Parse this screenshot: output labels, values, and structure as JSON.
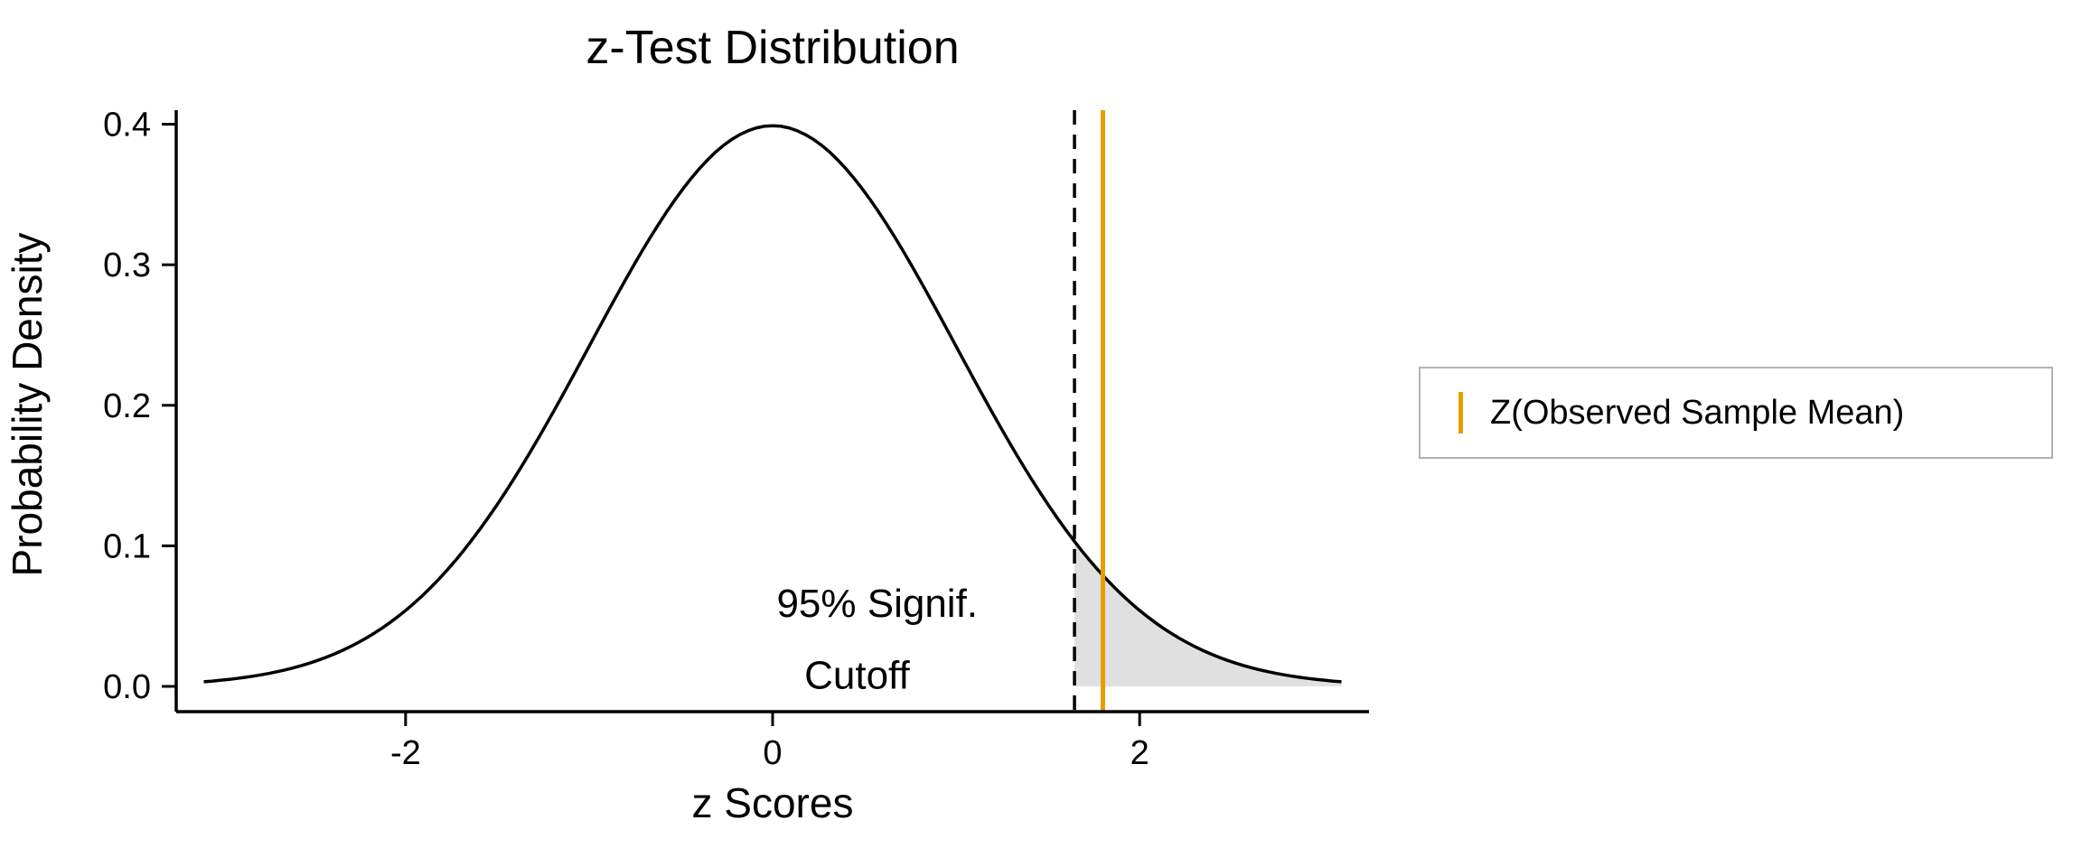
{
  "page": {
    "background": "#ffffff"
  },
  "chart_data": {
    "type": "line",
    "title": "z-Test Distribution",
    "xlabel": "z Scores",
    "ylabel": "Probability Density",
    "x_ticks": [
      -2,
      0,
      2
    ],
    "y_ticks": [
      0,
      0.1,
      0.2,
      0.3,
      0.4
    ],
    "xlim": [
      -3.25,
      3.25
    ],
    "ylim": [
      -0.018,
      0.41
    ],
    "grid": false,
    "legend_position": "right",
    "curve": {
      "name": "standard normal density",
      "mean": 0,
      "sd": 1,
      "x_from": -3.1,
      "x_to": 3.1,
      "color": "#000000",
      "points": [
        [
          -3.0,
          0.00443
        ],
        [
          -2.8,
          0.00792
        ],
        [
          -2.6,
          0.01358
        ],
        [
          -2.4,
          0.02239
        ],
        [
          -2.2,
          0.03547
        ],
        [
          -2.0,
          0.05399
        ],
        [
          -1.8,
          0.07895
        ],
        [
          -1.6,
          0.11092
        ],
        [
          -1.4,
          0.14973
        ],
        [
          -1.2,
          0.19419
        ],
        [
          -1.0,
          0.24197
        ],
        [
          -0.8,
          0.28969
        ],
        [
          -0.6,
          0.33322
        ],
        [
          -0.4,
          0.36827
        ],
        [
          -0.2,
          0.39104
        ],
        [
          0.0,
          0.39894
        ],
        [
          0.2,
          0.39104
        ],
        [
          0.4,
          0.36827
        ],
        [
          0.6,
          0.33322
        ],
        [
          0.8,
          0.28969
        ],
        [
          1.0,
          0.24197
        ],
        [
          1.2,
          0.19419
        ],
        [
          1.4,
          0.14973
        ],
        [
          1.6,
          0.11092
        ],
        [
          1.8,
          0.07895
        ],
        [
          2.0,
          0.05399
        ],
        [
          2.2,
          0.03547
        ],
        [
          2.4,
          0.02239
        ],
        [
          2.6,
          0.01358
        ],
        [
          2.8,
          0.00792
        ],
        [
          3.0,
          0.00443
        ]
      ]
    },
    "cutoff_line": {
      "x": 1.645,
      "style": "dashed",
      "color": "#000000"
    },
    "observed_line": {
      "x": 1.8,
      "style": "solid",
      "color": "#E69F00",
      "label": "Z(Observed Sample Mean)"
    },
    "shaded_region": {
      "from": 1.645,
      "to": 3.1,
      "color": "#E0E0E0"
    },
    "annotation": {
      "lines": [
        "95% Signif.",
        "Cutoff"
      ],
      "positions": [
        [
          0.57,
          0.059
        ],
        [
          0.46,
          0.008
        ]
      ]
    }
  },
  "legend": {
    "border_color": "#b3b3b3",
    "items": [
      {
        "label": "Z(Observed Sample Mean)",
        "key": "vertical-line",
        "color": "#E69F00"
      }
    ]
  }
}
